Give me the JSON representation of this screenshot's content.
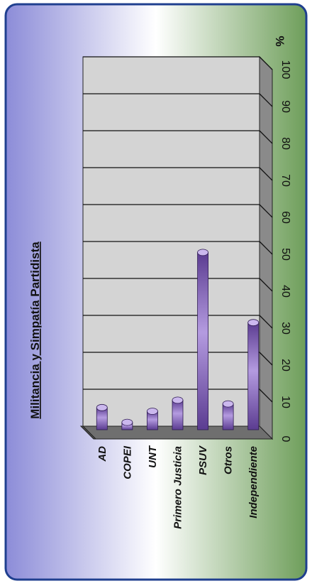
{
  "chart_data": {
    "type": "bar",
    "orientation": "rotated-90-clockwise",
    "title": "Militancia y Simpatía Partidista",
    "unit_label": "%",
    "categories": [
      "AD",
      "COPEI",
      "UNT",
      "Primero Justicia",
      "PSUV",
      "Otros",
      "Independiente"
    ],
    "values": [
      6,
      2,
      5,
      8,
      48,
      7,
      29
    ],
    "ylim": [
      0,
      100
    ],
    "y_ticks": [
      "0",
      "10",
      "20",
      "30",
      "40",
      "50",
      "60",
      "70",
      "80",
      "90",
      "100"
    ],
    "grid": true,
    "bar_color": "#8a64c4",
    "background_gradient": [
      "#8c8cd8",
      "#ffffff",
      "#6e9e5a"
    ]
  }
}
